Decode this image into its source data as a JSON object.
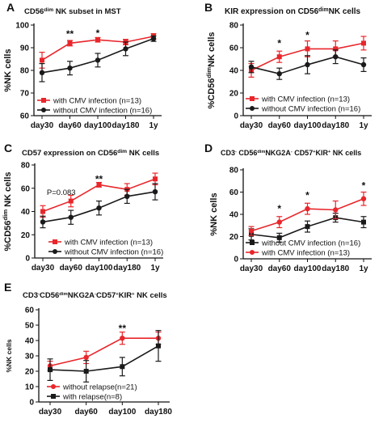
{
  "chart_data": [
    {
      "panel": "A",
      "type": "line",
      "title": "CD56dim NK subset in MST",
      "title_parts": [
        {
          "t": "CD56",
          "s": 0
        },
        {
          "t": "dim",
          "s": 1
        },
        {
          "t": " NK subset in MST",
          "s": 0
        }
      ],
      "ylabel_parts": [
        {
          "t": "%NK  cells",
          "s": 0
        }
      ],
      "categories": [
        "day30",
        "day60",
        "day100",
        "day180",
        "1y"
      ],
      "ylim": [
        60,
        100
      ],
      "yticks": [
        60,
        70,
        80,
        90,
        100
      ],
      "series": [
        {
          "name": "with CMV infection (n=13)",
          "color": "#e8262b",
          "marker": "square",
          "values": [
            84.5,
            92,
            93.5,
            92.5,
            95
          ],
          "err": [
            3.5,
            1.2,
            1.0,
            1.2,
            1.2
          ]
        },
        {
          "name": "without CMV infection (n=16)",
          "color": "#1a1a1a",
          "marker": "circle",
          "values": [
            79,
            81,
            84.5,
            89.5,
            94
          ],
          "err": [
            4.0,
            3.0,
            3.0,
            3.0,
            1.2
          ]
        }
      ],
      "annotations": [
        {
          "x": "day60",
          "y": 96,
          "text": "**"
        },
        {
          "x": "day100",
          "y": 96.5,
          "text": "*"
        }
      ],
      "legend": "bottom-left"
    },
    {
      "panel": "B",
      "type": "line",
      "title": "KIR expression on CD56dimNK cells",
      "title_parts": [
        {
          "t": "KIR expression on CD56",
          "s": 0
        },
        {
          "t": "dim",
          "s": 1
        },
        {
          "t": "NK cells",
          "s": 0
        }
      ],
      "ylabel_parts": [
        {
          "t": "%CD56",
          "s": 0
        },
        {
          "t": "dim",
          "s": 1
        },
        {
          "t": "NK  cells",
          "s": 0
        }
      ],
      "categories": [
        "day30",
        "day60",
        "day100",
        "day180",
        "1y"
      ],
      "ylim": [
        0,
        80
      ],
      "yticks": [
        0,
        20,
        40,
        60,
        80
      ],
      "series": [
        {
          "name": "with CMV infection (n=13)",
          "color": "#e8262b",
          "marker": "square",
          "values": [
            40,
            52,
            59,
            59,
            64
          ],
          "err": [
            6,
            5,
            7,
            7,
            6
          ]
        },
        {
          "name": "without CMV infection (n=16)",
          "color": "#1a1a1a",
          "marker": "circle",
          "values": [
            43,
            37,
            45,
            52,
            45
          ],
          "err": [
            5,
            5,
            8,
            6,
            6
          ]
        }
      ],
      "annotations": [
        {
          "x": "day60",
          "y": 64,
          "text": "*"
        },
        {
          "x": "day100",
          "y": 71,
          "text": "*"
        }
      ],
      "legend": "bottom-right"
    },
    {
      "panel": "C",
      "type": "line",
      "title": "CD57 expression on CD56dim NK cells",
      "title_parts": [
        {
          "t": "CD57 expression on CD56",
          "s": 0
        },
        {
          "t": "dim",
          "s": 1
        },
        {
          "t": " NK cells",
          "s": 0
        }
      ],
      "ylabel_parts": [
        {
          "t": "%CD56",
          "s": 0
        },
        {
          "t": "dim",
          "s": 1
        },
        {
          "t": " NK  cells",
          "s": 0
        }
      ],
      "categories": [
        "day30",
        "day60",
        "day100",
        "day180",
        "1y"
      ],
      "ylim": [
        0,
        80
      ],
      "yticks": [
        0,
        20,
        40,
        60,
        80
      ],
      "series": [
        {
          "name": "with CMV infection (n=13)",
          "color": "#e8262b",
          "marker": "square",
          "values": [
            40,
            49,
            63,
            59,
            68
          ],
          "err": [
            5,
            5,
            2,
            5,
            5
          ]
        },
        {
          "name": "without CMV infection (n=16)",
          "color": "#1a1a1a",
          "marker": "circle",
          "values": [
            31,
            35,
            43,
            53,
            57
          ],
          "err": [
            5,
            6,
            6,
            6,
            7
          ]
        }
      ],
      "annotations": [
        {
          "x": "day60",
          "y": 57,
          "text": "P=0.083"
        },
        {
          "x": "day100",
          "y": 68,
          "text": "**"
        }
      ],
      "legend": "bottom-right"
    },
    {
      "panel": "D",
      "type": "line",
      "title": "CD3-CD56dimNKG2A-CD57+KIR+ NK cells",
      "title_parts": [
        {
          "t": "CD3",
          "s": 0
        },
        {
          "t": "-",
          "s": 2
        },
        {
          "t": " CD56",
          "s": 0
        },
        {
          "t": "dim",
          "s": 2
        },
        {
          "t": "NKG2A",
          "s": 0
        },
        {
          "t": "-",
          "s": 2
        },
        {
          "t": " CD57",
          "s": 0
        },
        {
          "t": "+",
          "s": 2
        },
        {
          "t": "KIR",
          "s": 0
        },
        {
          "t": "+",
          "s": 2
        },
        {
          "t": " NK cells",
          "s": 0
        }
      ],
      "ylabel_parts": [
        {
          "t": "%NK  cells",
          "s": 0
        }
      ],
      "categories": [
        "day30",
        "day60",
        "day100",
        "day180",
        "1y"
      ],
      "ylim": [
        0,
        80
      ],
      "yticks": [
        0,
        20,
        40,
        60,
        80
      ],
      "series": [
        {
          "name": "without CMV infection (n=16)",
          "color": "#1a1a1a",
          "marker": "square",
          "values": [
            22,
            19,
            29,
            37,
            33
          ],
          "err": [
            5,
            4,
            5,
            4,
            5
          ]
        },
        {
          "name": "with CMV infection (n=13)",
          "color": "#e8262b",
          "marker": "circle",
          "values": [
            25,
            33,
            45,
            44,
            54
          ],
          "err": [
            4,
            5,
            5,
            8,
            6
          ]
        }
      ],
      "annotations": [
        {
          "x": "day60",
          "y": 45,
          "text": "*"
        },
        {
          "x": "day100",
          "y": 57,
          "text": "*"
        },
        {
          "x": "1y",
          "y": 66,
          "text": "*"
        }
      ],
      "legend": "bottom-right"
    },
    {
      "panel": "E",
      "type": "line",
      "title": "CD3-CD56dimNKG2A-CD57+KIR+ NK cells",
      "title_parts": [
        {
          "t": "CD3",
          "s": 0
        },
        {
          "t": "-",
          "s": 2
        },
        {
          "t": "CD56",
          "s": 0
        },
        {
          "t": "dim",
          "s": 2
        },
        {
          "t": "NKG2A",
          "s": 0
        },
        {
          "t": "-",
          "s": 2
        },
        {
          "t": "CD57",
          "s": 0
        },
        {
          "t": "+",
          "s": 2
        },
        {
          "t": "KIR",
          "s": 0
        },
        {
          "t": "+",
          "s": 2
        },
        {
          "t": " NK cells",
          "s": 0
        }
      ],
      "ylabel_parts": [
        {
          "t": "%NK cells",
          "s": 0
        }
      ],
      "categories": [
        "day30",
        "day60",
        "day100",
        "day180"
      ],
      "ylim": [
        0,
        60
      ],
      "yticks": [
        0,
        10,
        20,
        30,
        40,
        50,
        60
      ],
      "series": [
        {
          "name": "without relapse(n=21)",
          "color": "#e8262b",
          "marker": "circle",
          "values": [
            23.5,
            29,
            41.5,
            41.5
          ],
          "err": [
            3,
            4,
            4,
            4
          ]
        },
        {
          "name": "with relapse(n=8)",
          "color": "#1a1a1a",
          "marker": "square",
          "values": [
            21,
            20,
            23,
            36.5
          ],
          "err": [
            7,
            7,
            6,
            10
          ]
        }
      ],
      "annotations": [
        {
          "x": "day100",
          "y": 48,
          "text": "**"
        }
      ],
      "legend": "bottom-left"
    }
  ]
}
